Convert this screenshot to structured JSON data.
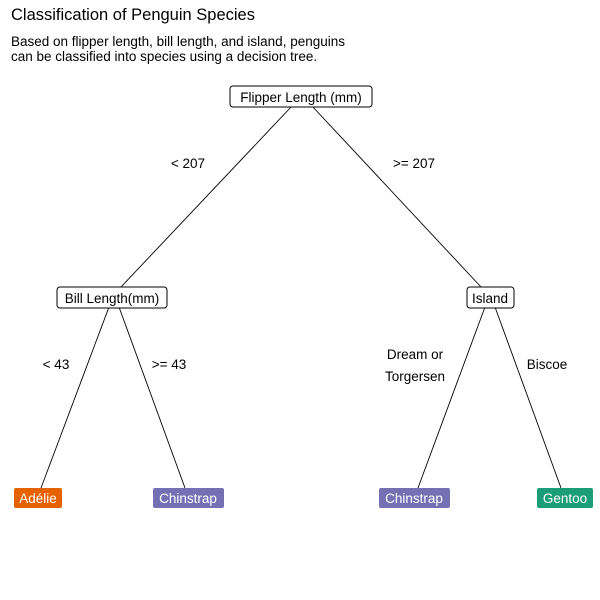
{
  "title": "Classification of Penguin Species",
  "subtitle": {
    "line1": "Based on flipper length, bill length, and island, penguins",
    "line2": "can be classified into species using a decision tree."
  },
  "tree": {
    "root": "Flipper Length (mm)",
    "left_split": "Bill Length(mm)",
    "right_split": "Island",
    "edges": {
      "root_left": "< 207",
      "root_right": ">= 207",
      "bill_left": "< 43",
      "bill_right": ">= 43",
      "island_left_line1": "Dream or",
      "island_left_line2": "Torgersen",
      "island_right": "Biscoe"
    },
    "leaves": {
      "adelie": "Adélie",
      "chinstrap_bill": "Chinstrap",
      "chinstrap_island": "Chinstrap",
      "gentoo": "Gentoo"
    }
  },
  "colors": {
    "adelie": "#e66100",
    "chinstrap": "#7570b3",
    "gentoo": "#1b9e77"
  }
}
